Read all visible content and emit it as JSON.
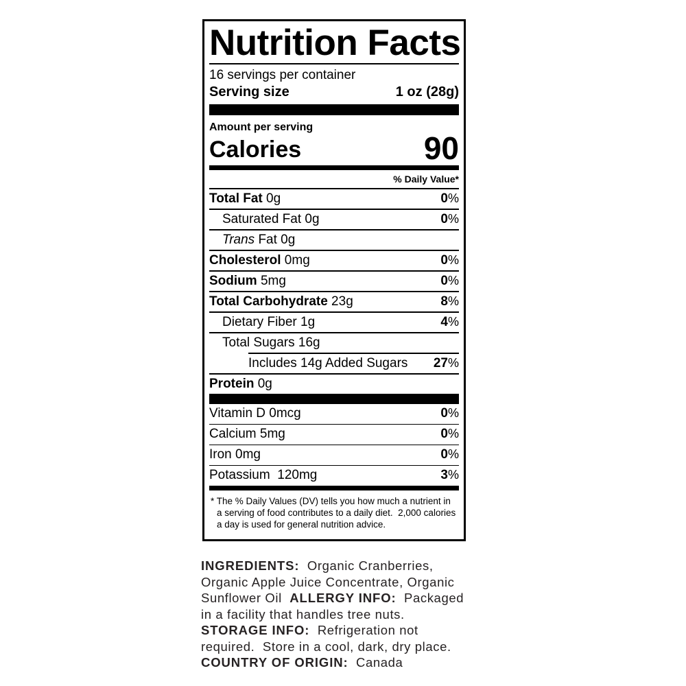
{
  "label": {
    "title": "Nutrition Facts",
    "servings_per_container": "16 servings per container",
    "serving_size_label": "Serving size",
    "serving_size_value": "1 oz (28g)",
    "amount_per_serving": "Amount per serving",
    "calories_label": "Calories",
    "calories_value": "90",
    "daily_value_header": "% Daily Value*",
    "nutrient_rows": [
      {
        "name": "Total Fat",
        "amount": "0g",
        "dv": "0%",
        "bold": true,
        "italic": false,
        "indent": 0,
        "rule": "full"
      },
      {
        "name": "Saturated Fat",
        "amount": "0g",
        "dv": "0%",
        "bold": false,
        "italic": false,
        "indent": 1,
        "rule": "full"
      },
      {
        "name": "Trans",
        "amount": "Fat 0g",
        "dv": "",
        "bold": false,
        "italic": true,
        "indent": 1,
        "rule": "full"
      },
      {
        "name": "Cholesterol",
        "amount": "0mg",
        "dv": "0%",
        "bold": true,
        "italic": false,
        "indent": 0,
        "rule": "full"
      },
      {
        "name": "Sodium",
        "amount": "5mg",
        "dv": "0%",
        "bold": true,
        "italic": false,
        "indent": 0,
        "rule": "full"
      },
      {
        "name": "Total Carbohydrate",
        "amount": "23g",
        "dv": "8%",
        "bold": true,
        "italic": false,
        "indent": 0,
        "rule": "full"
      },
      {
        "name": "Dietary Fiber",
        "amount": "1g",
        "dv": "4%",
        "bold": false,
        "italic": false,
        "indent": 1,
        "rule": "full"
      },
      {
        "name": "Total Sugars",
        "amount": "16g",
        "dv": "",
        "bold": false,
        "italic": false,
        "indent": 1,
        "rule": "full"
      },
      {
        "name": "Includes 14g Added Sugars",
        "amount": "",
        "dv": "27%",
        "bold": false,
        "italic": false,
        "indent": 2,
        "rule": "indent"
      },
      {
        "name": "Protein",
        "amount": "0g",
        "dv": "",
        "bold": true,
        "italic": false,
        "indent": 0,
        "rule": "full"
      }
    ],
    "vitamin_rows": [
      {
        "name": "Vitamin D 0mcg",
        "dv": "0%",
        "rule": "none"
      },
      {
        "name": "Calcium 5mg",
        "dv": "0%",
        "rule": "full"
      },
      {
        "name": "Iron 0mg",
        "dv": "0%",
        "rule": "full"
      },
      {
        "name": "Potassium  120mg",
        "dv": "3%",
        "rule": "full"
      }
    ],
    "footnote_lines": [
      {
        "text": "* The % Daily Values (DV) tells you how much a nutrient in",
        "hang": false
      },
      {
        "text": "a serving of food contributes to a daily diet.  2,000 calories",
        "hang": true
      },
      {
        "text": "a day is used for general nutrition advice.",
        "hang": true
      }
    ]
  },
  "info": {
    "lines": [
      [
        {
          "t": "INGREDIENTS:",
          "b": true
        },
        {
          "t": "  Organic Cranberries,",
          "b": false
        }
      ],
      [
        {
          "t": "Organic Apple Juice Concentrate, Organic",
          "b": false
        }
      ],
      [
        {
          "t": "Sunflower Oil  ",
          "b": false
        },
        {
          "t": "ALLERGY INFO:",
          "b": true
        },
        {
          "t": "  Packaged",
          "b": false
        }
      ],
      [
        {
          "t": "in a facility that handles tree nuts.",
          "b": false
        }
      ],
      [
        {
          "t": "STORAGE INFO:",
          "b": true
        },
        {
          "t": "  Refrigeration not",
          "b": false
        }
      ],
      [
        {
          "t": "required.  Store in a cool, dark, dry place.",
          "b": false
        }
      ],
      [
        {
          "t": "COUNTRY OF ORIGIN:",
          "b": true
        },
        {
          "t": "  Canada",
          "b": false
        }
      ]
    ]
  },
  "colors": {
    "ink": "#000000",
    "info_text": "#262223",
    "background": "#ffffff"
  }
}
